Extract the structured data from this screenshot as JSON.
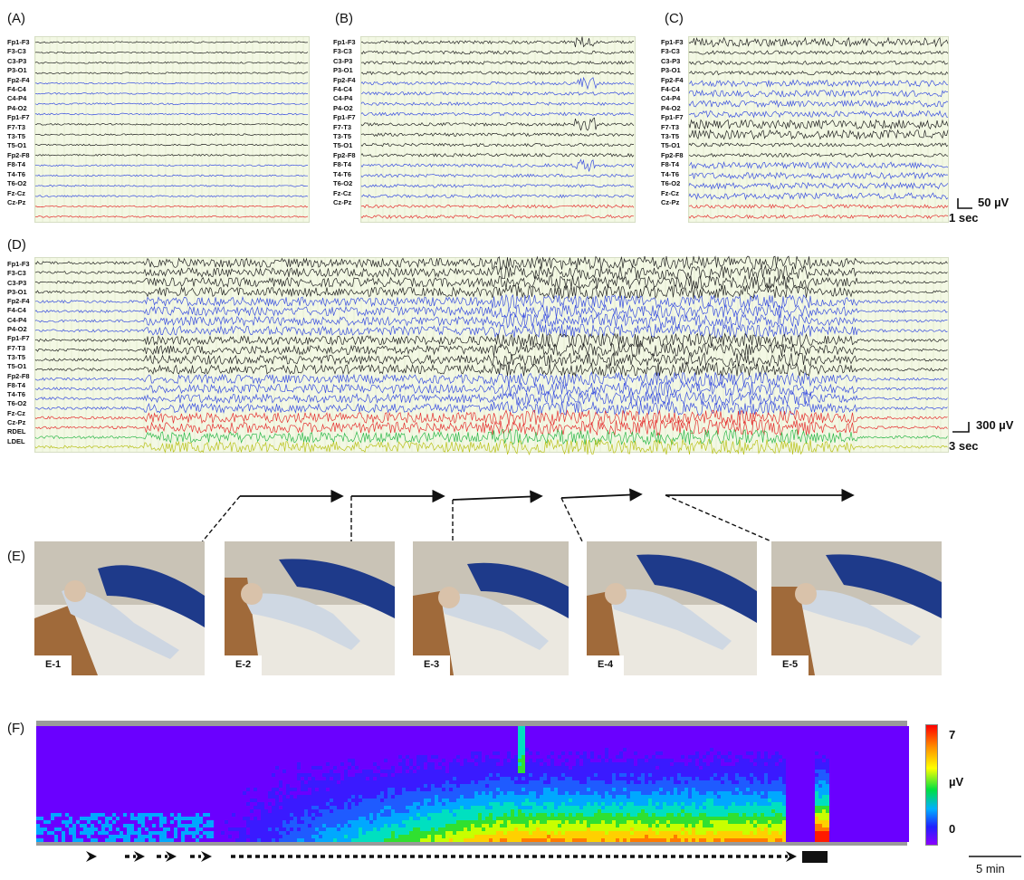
{
  "panels": {
    "A": {
      "label": "(A)"
    },
    "B": {
      "label": "(B)"
    },
    "C": {
      "label": "(C)"
    },
    "D": {
      "label": "(D)"
    },
    "E": {
      "label": "(E)"
    },
    "F": {
      "label": "(F)"
    }
  },
  "channels_short": [
    "Fp1-F3",
    "F3-C3",
    "C3-P3",
    "P3-O1",
    "Fp2-F4",
    "F4-C4",
    "C4-P4",
    "P4-O2",
    "Fp1-F7",
    "F7-T3",
    "T3-T5",
    "T5-O1",
    "Fp2-F8",
    "F8-T4",
    "T4-T6",
    "T6-O2",
    "Fz-Cz",
    "Cz-Pz"
  ],
  "channels_long": [
    "Fp1-F3",
    "F3-C3",
    "C3-P3",
    "P3-O1",
    "Fp2-F4",
    "F4-C4",
    "C4-P4",
    "P4-O2",
    "Fp1-F7",
    "F7-T3",
    "T3-T5",
    "T5-O1",
    "Fp2-F8",
    "F8-T4",
    "T4-T6",
    "T6-O2",
    "Fz-Cz",
    "Cz-Pz",
    "RDEL",
    "LDEL"
  ],
  "scales": {
    "abc": {
      "amplitude": "50 µV",
      "time": "1 sec"
    },
    "d": {
      "amplitude": "300 µV",
      "time": "3 sec"
    },
    "f": {
      "time": "5 min"
    }
  },
  "photos": [
    "E-1",
    "E-2",
    "E-3",
    "E-4",
    "E-5"
  ],
  "colorbar": {
    "max": "7",
    "unit": "µV",
    "min": "0"
  },
  "colors": {
    "black": "#222222",
    "blue": "#3a4fe0",
    "red": "#e53030",
    "green": "#2db84a",
    "olive": "#b9c21a",
    "grid": "#f3f8e4"
  }
}
